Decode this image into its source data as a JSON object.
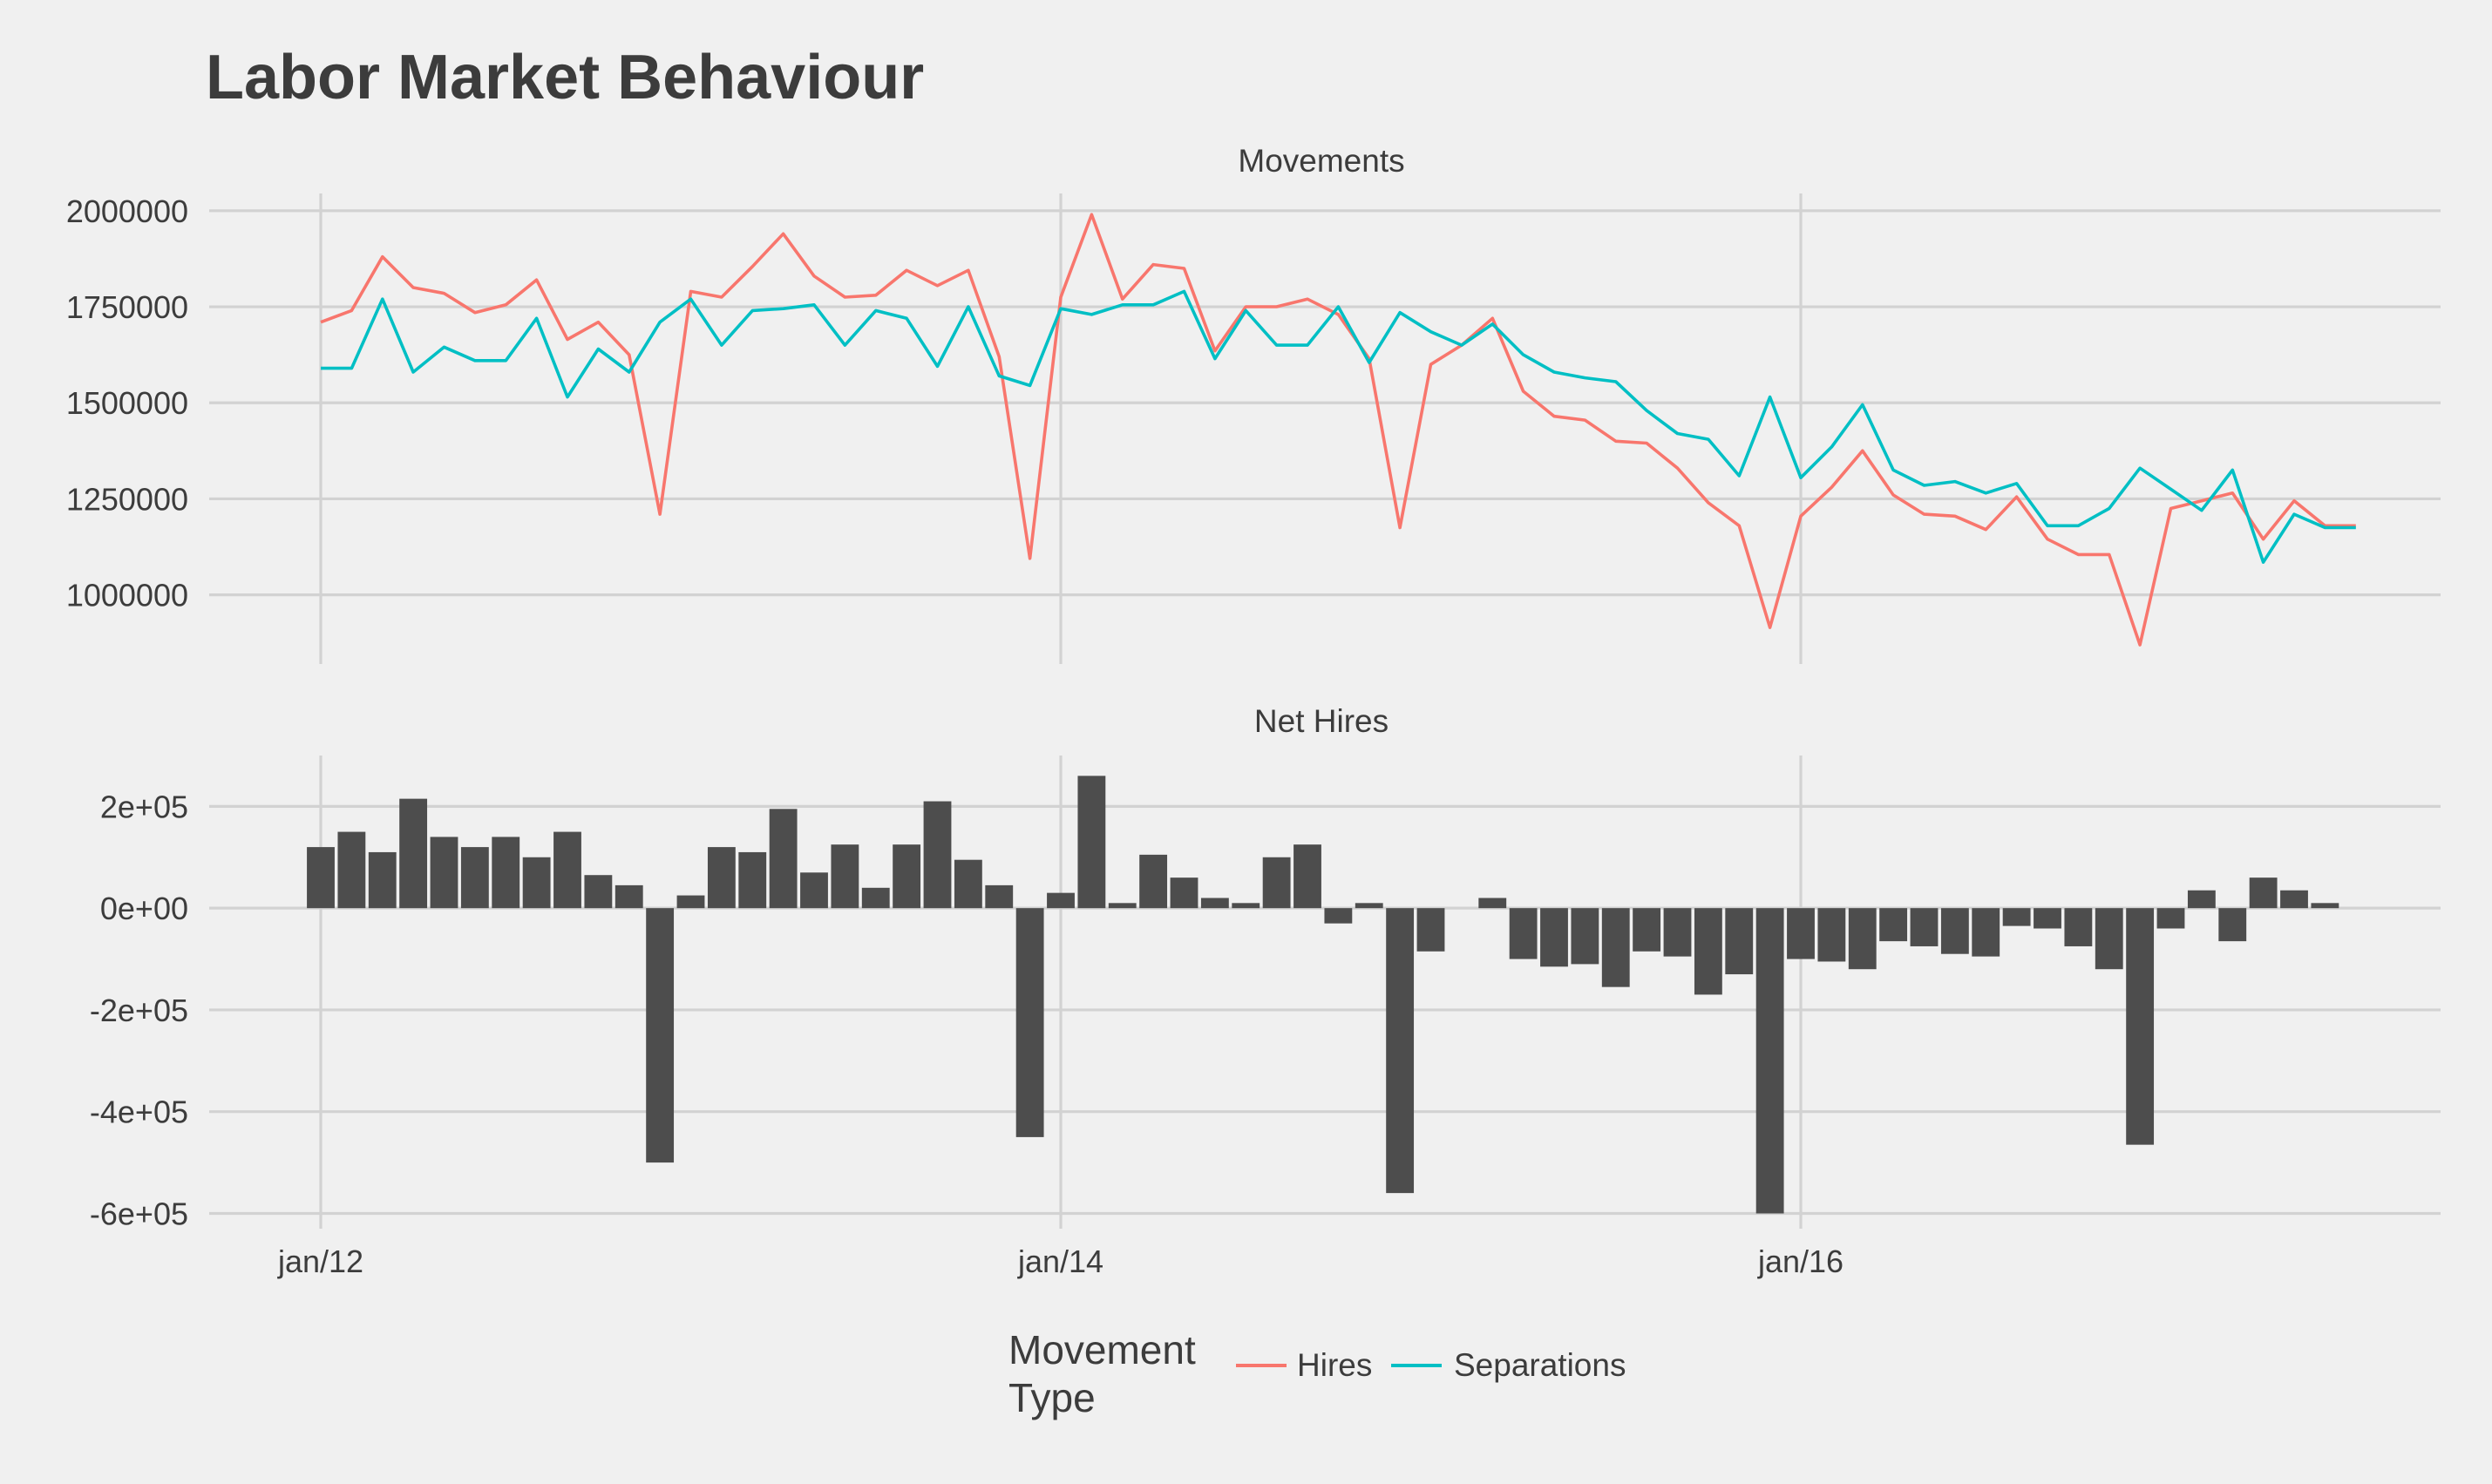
{
  "title": "Labor Market Behaviour",
  "legend": {
    "title_line1": "Movement",
    "title_line2": "Type",
    "position": "bottom",
    "items": [
      {
        "label": "Hires",
        "color": "#f8766d"
      },
      {
        "label": "Separations",
        "color": "#00bfc4"
      }
    ]
  },
  "chart_data": [
    {
      "type": "line",
      "panel": "Movements",
      "x_ticks": [
        "jan/12",
        "jan/14",
        "jan/16"
      ],
      "y_ticks": [
        "1000000",
        "1250000",
        "1500000",
        "1750000",
        "2000000"
      ],
      "ylim": [
        820000,
        2045000
      ],
      "grid": true,
      "x": [
        "2012-01",
        "2012-02",
        "2012-03",
        "2012-04",
        "2012-05",
        "2012-06",
        "2012-07",
        "2012-08",
        "2012-09",
        "2012-10",
        "2012-11",
        "2012-12",
        "2013-01",
        "2013-02",
        "2013-03",
        "2013-04",
        "2013-05",
        "2013-06",
        "2013-07",
        "2013-08",
        "2013-09",
        "2013-10",
        "2013-11",
        "2013-12",
        "2014-01",
        "2014-02",
        "2014-03",
        "2014-04",
        "2014-05",
        "2014-06",
        "2014-07",
        "2014-08",
        "2014-09",
        "2014-10",
        "2014-11",
        "2014-12",
        "2015-01",
        "2015-02",
        "2015-03",
        "2015-04",
        "2015-05",
        "2015-06",
        "2015-07",
        "2015-08",
        "2015-09",
        "2015-10",
        "2015-11",
        "2015-12",
        "2016-01",
        "2016-02",
        "2016-03",
        "2016-04",
        "2016-05",
        "2016-06",
        "2016-07",
        "2016-08",
        "2016-09",
        "2016-10",
        "2016-11",
        "2016-12",
        "2017-01",
        "2017-02",
        "2017-03",
        "2017-04",
        "2017-05",
        "2017-06",
        "2017-07"
      ],
      "series": [
        {
          "name": "Hires",
          "color": "#f8766d",
          "values": [
            1710000,
            1740000,
            1880000,
            1800000,
            1785000,
            1735000,
            1755000,
            1820000,
            1665000,
            1710000,
            1625000,
            1210000,
            1790000,
            1775000,
            1855000,
            1940000,
            1830000,
            1775000,
            1780000,
            1845000,
            1805000,
            1845000,
            1620000,
            1095000,
            1775000,
            1990000,
            1770000,
            1860000,
            1850000,
            1635000,
            1750000,
            1750000,
            1770000,
            1730000,
            1615000,
            1175000,
            1600000,
            1650000,
            1720000,
            1530000,
            1465000,
            1455000,
            1400000,
            1395000,
            1330000,
            1240000,
            1180000,
            915000,
            1205000,
            1280000,
            1375000,
            1260000,
            1210000,
            1205000,
            1170000,
            1255000,
            1145000,
            1105000,
            1105000,
            870000,
            1225000,
            1245000,
            1265000,
            1145000,
            1245000,
            1180000,
            1180000
          ]
        },
        {
          "name": "Separations",
          "color": "#00bfc4",
          "values": [
            1590000,
            1590000,
            1770000,
            1580000,
            1645000,
            1610000,
            1610000,
            1720000,
            1515000,
            1640000,
            1580000,
            1710000,
            1770000,
            1650000,
            1740000,
            1745000,
            1755000,
            1650000,
            1740000,
            1720000,
            1595000,
            1750000,
            1570000,
            1545000,
            1745000,
            1730000,
            1755000,
            1755000,
            1790000,
            1615000,
            1740000,
            1650000,
            1650000,
            1750000,
            1605000,
            1735000,
            1685000,
            1650000,
            1705000,
            1625000,
            1580000,
            1565000,
            1555000,
            1480000,
            1420000,
            1405000,
            1310000,
            1515000,
            1305000,
            1385000,
            1495000,
            1325000,
            1285000,
            1295000,
            1265000,
            1290000,
            1180000,
            1180000,
            1225000,
            1330000,
            1275000,
            1220000,
            1325000,
            1085000,
            1210000,
            1175000,
            1175000
          ]
        }
      ]
    },
    {
      "type": "bar",
      "panel": "Net Hires",
      "x_ticks": [
        "jan/12",
        "jan/14",
        "jan/16"
      ],
      "y_ticks": [
        "-6e+05",
        "-4e+05",
        "-2e+05",
        "0e+00",
        "2e+05"
      ],
      "ylim": [
        -630000,
        300000
      ],
      "grid": true,
      "color": "#4d4d4d",
      "x": [
        "2012-01",
        "2012-02",
        "2012-03",
        "2012-04",
        "2012-05",
        "2012-06",
        "2012-07",
        "2012-08",
        "2012-09",
        "2012-10",
        "2012-11",
        "2012-12",
        "2013-01",
        "2013-02",
        "2013-03",
        "2013-04",
        "2013-05",
        "2013-06",
        "2013-07",
        "2013-08",
        "2013-09",
        "2013-10",
        "2013-11",
        "2013-12",
        "2014-01",
        "2014-02",
        "2014-03",
        "2014-04",
        "2014-05",
        "2014-06",
        "2014-07",
        "2014-08",
        "2014-09",
        "2014-10",
        "2014-11",
        "2014-12",
        "2015-01",
        "2015-02",
        "2015-03",
        "2015-04",
        "2015-05",
        "2015-06",
        "2015-07",
        "2015-08",
        "2015-09",
        "2015-10",
        "2015-11",
        "2015-12",
        "2016-01",
        "2016-02",
        "2016-03",
        "2016-04",
        "2016-05",
        "2016-06",
        "2016-07",
        "2016-08",
        "2016-09",
        "2016-10",
        "2016-11",
        "2016-12",
        "2017-01",
        "2017-02",
        "2017-03",
        "2017-04",
        "2017-05",
        "2017-06",
        "2017-07"
      ],
      "values": [
        120000,
        150000,
        110000,
        215000,
        140000,
        120000,
        140000,
        100000,
        150000,
        65000,
        45000,
        -500000,
        25000,
        120000,
        110000,
        195000,
        70000,
        125000,
        40000,
        125000,
        210000,
        95000,
        45000,
        -450000,
        30000,
        260000,
        10000,
        105000,
        60000,
        20000,
        10000,
        100000,
        125000,
        -30000,
        10000,
        -560000,
        -85000,
        0,
        20000,
        -100000,
        -115000,
        -110000,
        -155000,
        -85000,
        -95000,
        -170000,
        -130000,
        -600000,
        -100000,
        -105000,
        -120000,
        -65000,
        -75000,
        -90000,
        -95000,
        -35000,
        -40000,
        -75000,
        -120000,
        -465000,
        -40000,
        35000,
        -65000,
        60000,
        35000,
        10000,
        0
      ]
    }
  ]
}
